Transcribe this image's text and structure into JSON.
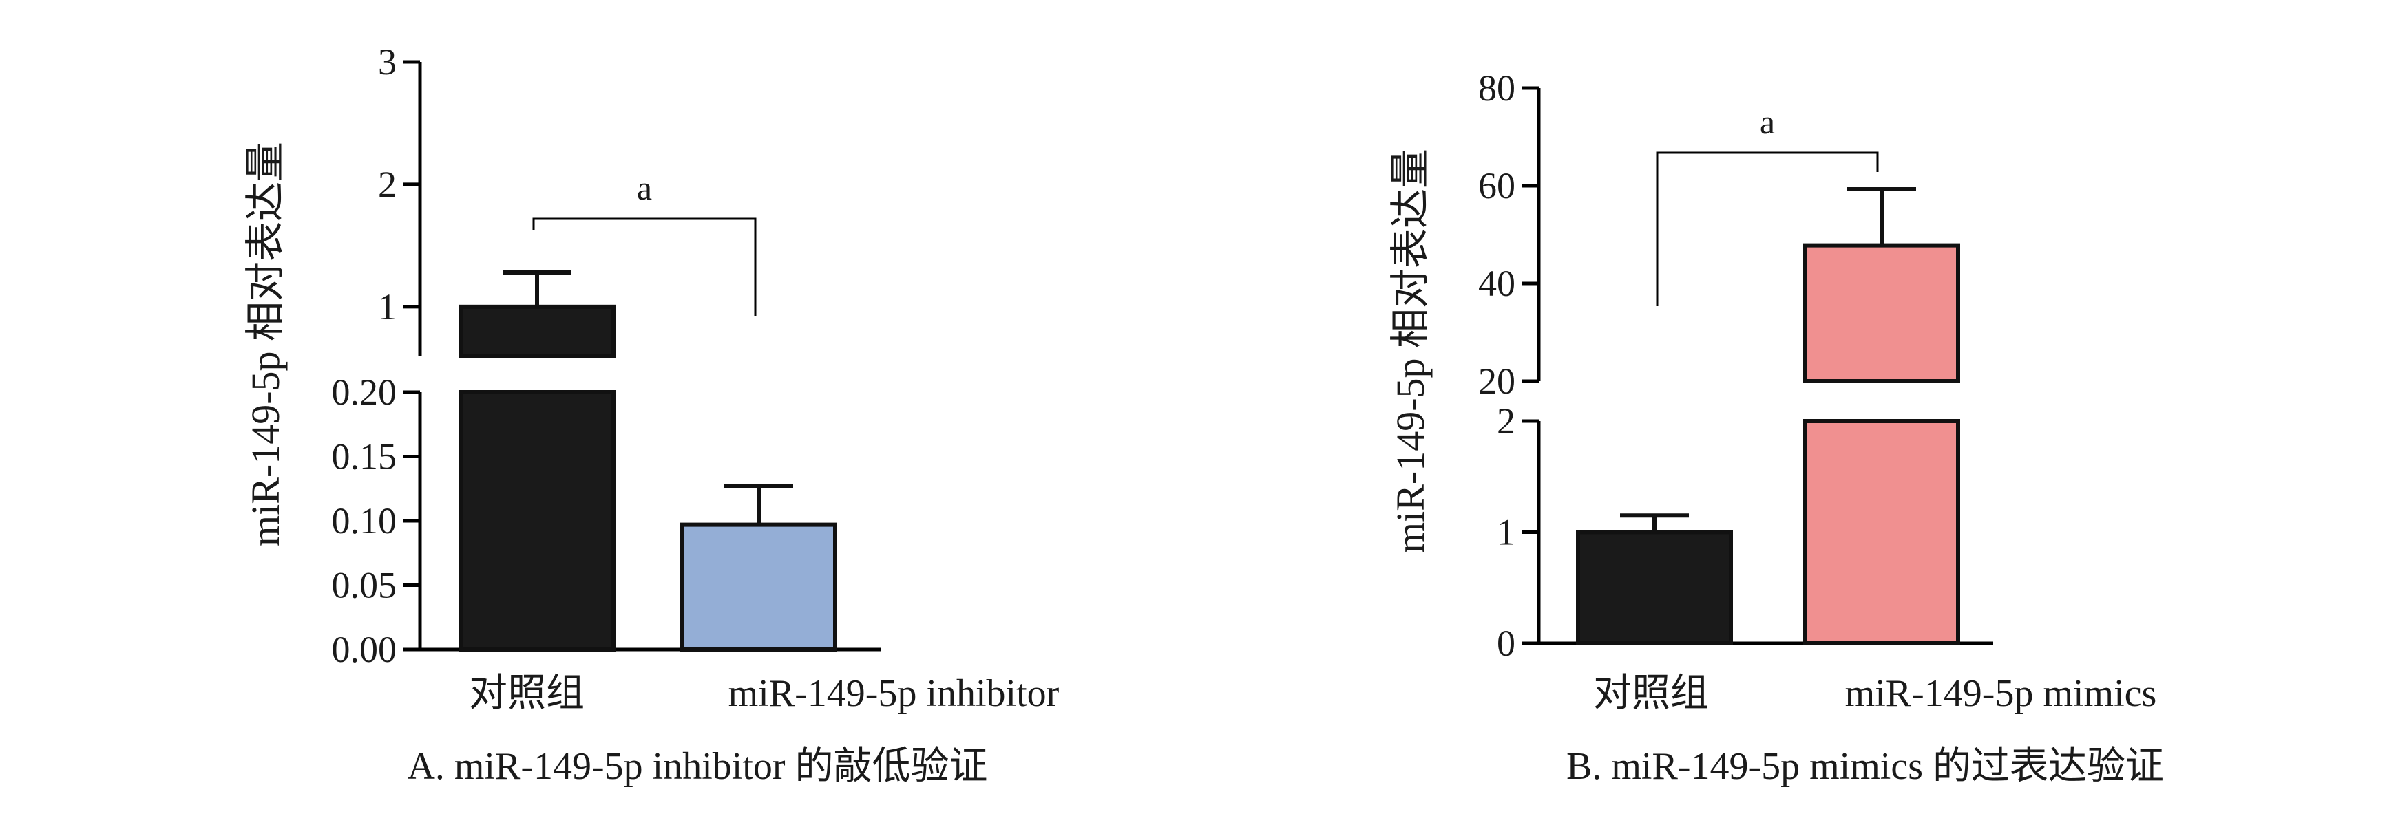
{
  "chart_data": [
    {
      "type": "bar",
      "panel_caption": "A. miR-149-5p inhibitor 的敲低验证",
      "ylabel": "miR-149-5p 相对表达量",
      "xlabel": "",
      "categories": [
        "对照组",
        "miR-149-5p inhibitor"
      ],
      "values": [
        1.0,
        0.097
      ],
      "errors": [
        0.28,
        0.03
      ],
      "colors": [
        "#1a1a1a",
        "#94aed6"
      ],
      "broken_axis": true,
      "y_segments": [
        {
          "range": [
            0,
            0.2
          ],
          "ticks": [
            0,
            0.05,
            0.1,
            0.15,
            0.2
          ],
          "tick_labels": [
            "0.00",
            "0.05",
            "0.10",
            "0.15",
            "0.20"
          ]
        },
        {
          "range": [
            0.6,
            3
          ],
          "ticks": [
            1,
            2,
            3
          ],
          "tick_labels": [
            "1",
            "2",
            "3"
          ]
        }
      ],
      "significance": {
        "pair": [
          0,
          1
        ],
        "label": "a"
      }
    },
    {
      "type": "bar",
      "panel_caption": "B. miR-149-5p mimics 的过表达验证",
      "ylabel": "miR-149-5p 相对表达量",
      "xlabel": "",
      "categories": [
        "对照组",
        "miR-149-5p mimics"
      ],
      "values": [
        1.0,
        47.8
      ],
      "errors": [
        0.15,
        11.5
      ],
      "colors": [
        "#1a1a1a",
        "#f09090"
      ],
      "broken_axis": true,
      "y_segments": [
        {
          "range": [
            0,
            2
          ],
          "ticks": [
            0,
            1,
            2
          ],
          "tick_labels": [
            "0",
            "1",
            "2"
          ]
        },
        {
          "range": [
            20,
            80
          ],
          "ticks": [
            20,
            40,
            60,
            80
          ],
          "tick_labels": [
            "20",
            "40",
            "60",
            "80"
          ]
        }
      ],
      "significance": {
        "pair": [
          0,
          1
        ],
        "label": "a"
      }
    }
  ]
}
